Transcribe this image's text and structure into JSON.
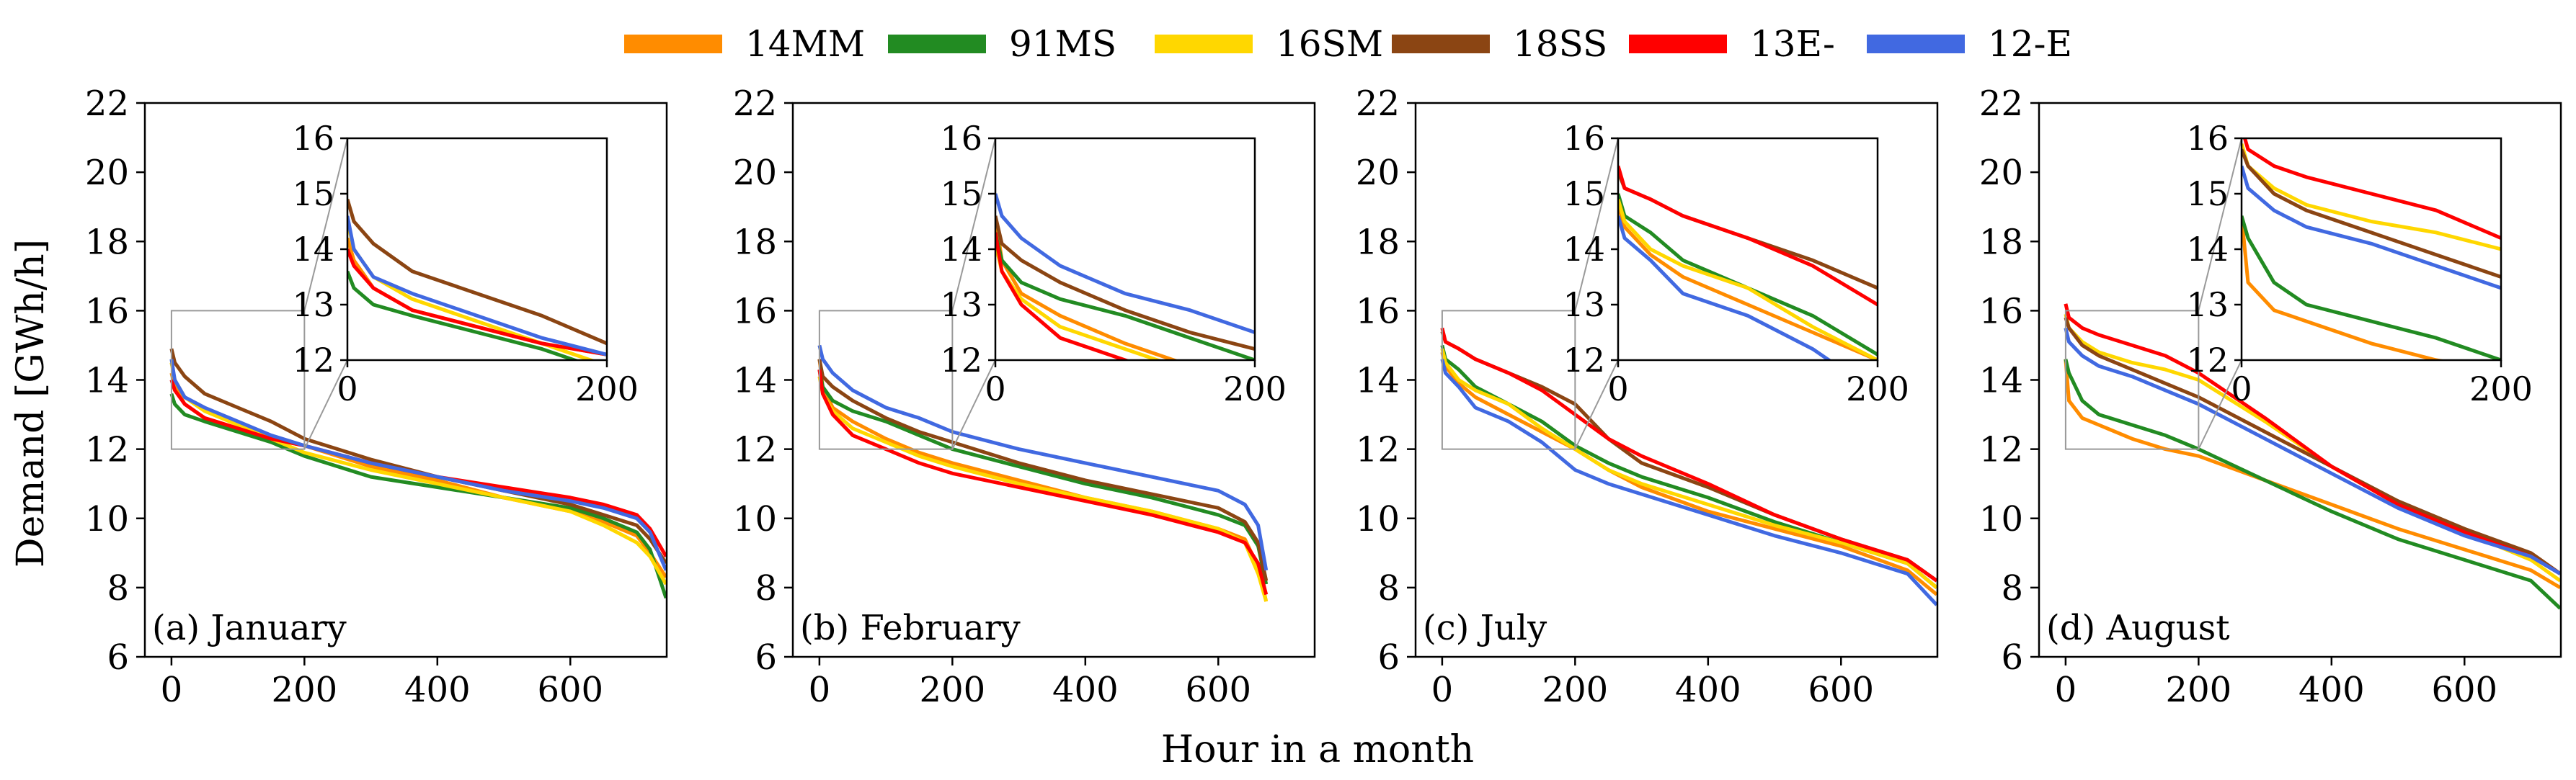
{
  "figure": {
    "ylabel": "Demand [GWh/h]",
    "xlabel": "Hour in a month"
  },
  "legend": {
    "placement": "top-center",
    "entries": [
      {
        "name": "14MM",
        "color": "#ff8c00"
      },
      {
        "name": "91MS",
        "color": "#228b22"
      },
      {
        "name": "16SM",
        "color": "#ffd700"
      },
      {
        "name": "18SS",
        "color": "#8b4513"
      },
      {
        "name": "13E-",
        "color": "#ff0000"
      },
      {
        "name": "12-E",
        "color": "#4169e1"
      }
    ]
  },
  "chart_data": [
    {
      "type": "line",
      "panel_label": "(a) January",
      "xlim": [
        -40,
        745
      ],
      "ylim": [
        6,
        22
      ],
      "xticks": [
        "0",
        "200",
        "400",
        "600"
      ],
      "yticks": [
        "6",
        "8",
        "10",
        "12",
        "14",
        "16",
        "18",
        "20",
        "22"
      ],
      "inset": {
        "xlim": [
          0,
          200
        ],
        "ylim": [
          12,
          16
        ],
        "xticks": [
          "0",
          "200"
        ],
        "yticks": [
          "12",
          "13",
          "14",
          "15",
          "16"
        ]
      },
      "series": [
        {
          "name": "14MM",
          "x": [
            0,
            5,
            20,
            50,
            100,
            150,
            200,
            300,
            400,
            500,
            600,
            650,
            700,
            720,
            744
          ],
          "y": [
            14.2,
            13.8,
            13.3,
            12.9,
            12.6,
            12.3,
            12.1,
            11.5,
            11.1,
            10.6,
            10.2,
            9.9,
            9.5,
            9.0,
            8.3
          ]
        },
        {
          "name": "91MS",
          "x": [
            0,
            5,
            20,
            50,
            100,
            150,
            200,
            300,
            400,
            500,
            600,
            650,
            700,
            720,
            744
          ],
          "y": [
            13.6,
            13.3,
            13.0,
            12.8,
            12.5,
            12.2,
            11.8,
            11.2,
            10.9,
            10.6,
            10.3,
            10.0,
            9.6,
            9.1,
            7.7
          ]
        },
        {
          "name": "16SM",
          "x": [
            0,
            5,
            20,
            50,
            100,
            150,
            200,
            300,
            400,
            500,
            600,
            650,
            700,
            720,
            744
          ],
          "y": [
            14.5,
            14.0,
            13.5,
            13.1,
            12.7,
            12.3,
            11.9,
            11.4,
            11.0,
            10.6,
            10.2,
            9.8,
            9.3,
            8.9,
            8.1
          ]
        },
        {
          "name": "18SS",
          "x": [
            0,
            5,
            20,
            50,
            100,
            150,
            200,
            300,
            400,
            500,
            600,
            650,
            700,
            720,
            744
          ],
          "y": [
            14.9,
            14.5,
            14.1,
            13.6,
            13.2,
            12.8,
            12.3,
            11.7,
            11.2,
            10.8,
            10.4,
            10.1,
            9.8,
            9.4,
            8.7
          ]
        },
        {
          "name": "13E-",
          "x": [
            0,
            5,
            20,
            50,
            100,
            150,
            200,
            300,
            400,
            500,
            600,
            650,
            700,
            720,
            744
          ],
          "y": [
            14.0,
            13.7,
            13.3,
            12.9,
            12.6,
            12.3,
            12.1,
            11.6,
            11.2,
            10.9,
            10.6,
            10.4,
            10.1,
            9.7,
            8.9
          ]
        },
        {
          "name": "12-E",
          "x": [
            0,
            5,
            20,
            50,
            100,
            150,
            200,
            300,
            400,
            500,
            600,
            650,
            700,
            720,
            744
          ],
          "y": [
            14.6,
            14.0,
            13.5,
            13.2,
            12.8,
            12.4,
            12.1,
            11.6,
            11.2,
            10.8,
            10.5,
            10.3,
            10.0,
            9.6,
            8.5
          ]
        }
      ]
    },
    {
      "type": "line",
      "panel_label": "(b) February",
      "xlim": [
        -40,
        745
      ],
      "ylim": [
        6,
        22
      ],
      "xticks": [
        "0",
        "200",
        "400",
        "600"
      ],
      "yticks": [
        "6",
        "8",
        "10",
        "12",
        "14",
        "16",
        "18",
        "20",
        "22"
      ],
      "inset": {
        "xlim": [
          0,
          200
        ],
        "ylim": [
          12,
          16
        ],
        "xticks": [
          "0",
          "200"
        ],
        "yticks": [
          "12",
          "13",
          "14",
          "15",
          "16"
        ]
      },
      "series": [
        {
          "name": "14MM",
          "x": [
            0,
            5,
            20,
            50,
            100,
            150,
            200,
            300,
            400,
            500,
            600,
            640,
            660,
            672
          ],
          "y": [
            14.6,
            13.8,
            13.2,
            12.8,
            12.3,
            11.9,
            11.6,
            11.1,
            10.6,
            10.2,
            9.7,
            9.4,
            8.6,
            7.6
          ]
        },
        {
          "name": "91MS",
          "x": [
            0,
            5,
            20,
            50,
            100,
            150,
            200,
            300,
            400,
            500,
            600,
            640,
            660,
            672
          ],
          "y": [
            14.3,
            13.8,
            13.4,
            13.1,
            12.8,
            12.4,
            12.0,
            11.5,
            11.0,
            10.6,
            10.1,
            9.8,
            9.2,
            8.1
          ]
        },
        {
          "name": "16SM",
          "x": [
            0,
            5,
            20,
            50,
            100,
            150,
            200,
            300,
            400,
            500,
            600,
            640,
            660,
            672
          ],
          "y": [
            14.1,
            13.6,
            13.1,
            12.6,
            12.2,
            11.8,
            11.5,
            11.0,
            10.6,
            10.2,
            9.7,
            9.3,
            8.4,
            7.6
          ]
        },
        {
          "name": "18SS",
          "x": [
            0,
            5,
            20,
            50,
            100,
            150,
            200,
            300,
            400,
            500,
            600,
            640,
            660,
            672
          ],
          "y": [
            14.6,
            14.1,
            13.8,
            13.4,
            12.9,
            12.5,
            12.2,
            11.6,
            11.1,
            10.7,
            10.3,
            9.9,
            9.3,
            8.2
          ]
        },
        {
          "name": "13E-",
          "x": [
            0,
            5,
            20,
            50,
            100,
            150,
            200,
            300,
            400,
            500,
            600,
            640,
            660,
            672
          ],
          "y": [
            14.3,
            13.6,
            13.0,
            12.4,
            12.0,
            11.6,
            11.3,
            10.9,
            10.5,
            10.1,
            9.6,
            9.3,
            8.7,
            7.8
          ]
        },
        {
          "name": "12-E",
          "x": [
            0,
            5,
            20,
            50,
            100,
            150,
            200,
            300,
            400,
            500,
            600,
            640,
            660,
            672
          ],
          "y": [
            15.0,
            14.6,
            14.2,
            13.7,
            13.2,
            12.9,
            12.5,
            12.0,
            11.6,
            11.2,
            10.8,
            10.4,
            9.8,
            8.5
          ]
        }
      ]
    },
    {
      "type": "line",
      "panel_label": "(c) July",
      "xlim": [
        -40,
        745
      ],
      "ylim": [
        6,
        22
      ],
      "xticks": [
        "0",
        "200",
        "400",
        "600"
      ],
      "yticks": [
        "6",
        "8",
        "10",
        "12",
        "14",
        "16",
        "18",
        "20",
        "22"
      ],
      "inset": {
        "xlim": [
          0,
          200
        ],
        "ylim": [
          12,
          16
        ],
        "xticks": [
          "0",
          "200"
        ],
        "yticks": [
          "12",
          "13",
          "14",
          "15",
          "16"
        ]
      },
      "series": [
        {
          "name": "14MM",
          "x": [
            0,
            5,
            25,
            50,
            100,
            150,
            200,
            250,
            300,
            400,
            500,
            600,
            700,
            744
          ],
          "y": [
            14.8,
            14.4,
            13.9,
            13.5,
            13.0,
            12.5,
            12.0,
            11.4,
            10.9,
            10.2,
            9.7,
            9.2,
            8.5,
            7.8
          ]
        },
        {
          "name": "91MS",
          "x": [
            0,
            5,
            25,
            50,
            100,
            150,
            200,
            250,
            300,
            400,
            500,
            600,
            700,
            744
          ],
          "y": [
            15.0,
            14.6,
            14.3,
            13.8,
            13.3,
            12.8,
            12.1,
            11.6,
            11.2,
            10.6,
            9.9,
            9.3,
            8.7,
            8.0
          ]
        },
        {
          "name": "16SM",
          "x": [
            0,
            5,
            25,
            50,
            100,
            150,
            200,
            250,
            300,
            400,
            500,
            600,
            700,
            744
          ],
          "y": [
            14.9,
            14.5,
            14.0,
            13.7,
            13.3,
            12.6,
            12.0,
            11.4,
            11.0,
            10.4,
            9.8,
            9.3,
            8.7,
            8.0
          ]
        },
        {
          "name": "18SS",
          "x": [
            0,
            5,
            25,
            50,
            100,
            150,
            200,
            250,
            300,
            400,
            500,
            600,
            700,
            744
          ],
          "y": [
            15.4,
            15.1,
            14.9,
            14.6,
            14.2,
            13.8,
            13.3,
            12.3,
            11.6,
            10.9,
            10.1,
            9.4,
            8.8,
            8.2
          ]
        },
        {
          "name": "13E-",
          "x": [
            0,
            5,
            25,
            50,
            100,
            150,
            200,
            250,
            300,
            400,
            500,
            600,
            700,
            744
          ],
          "y": [
            15.5,
            15.1,
            14.9,
            14.6,
            14.2,
            13.7,
            13.0,
            12.3,
            11.8,
            11.0,
            10.1,
            9.4,
            8.8,
            8.2
          ]
        },
        {
          "name": "12-E",
          "x": [
            0,
            5,
            25,
            50,
            100,
            150,
            200,
            250,
            300,
            400,
            500,
            600,
            700,
            744
          ],
          "y": [
            14.6,
            14.2,
            13.8,
            13.2,
            12.8,
            12.2,
            11.4,
            11.0,
            10.7,
            10.1,
            9.5,
            9.0,
            8.4,
            7.5
          ]
        }
      ]
    },
    {
      "type": "line",
      "panel_label": "(d) August",
      "xlim": [
        -40,
        745
      ],
      "ylim": [
        6,
        22
      ],
      "xticks": [
        "0",
        "200",
        "400",
        "600"
      ],
      "yticks": [
        "6",
        "8",
        "10",
        "12",
        "14",
        "16",
        "18",
        "20",
        "22"
      ],
      "inset": {
        "xlim": [
          0,
          200
        ],
        "ylim": [
          12,
          16
        ],
        "xticks": [
          "0",
          "200"
        ],
        "yticks": [
          "12",
          "13",
          "14",
          "15",
          "16"
        ]
      },
      "series": [
        {
          "name": "14MM",
          "x": [
            0,
            5,
            25,
            50,
            100,
            150,
            200,
            300,
            400,
            500,
            600,
            700,
            744
          ],
          "y": [
            14.6,
            13.4,
            12.9,
            12.7,
            12.3,
            12.0,
            11.8,
            11.1,
            10.4,
            9.7,
            9.1,
            8.5,
            8.0
          ]
        },
        {
          "name": "91MS",
          "x": [
            0,
            5,
            25,
            50,
            100,
            150,
            200,
            300,
            400,
            500,
            600,
            700,
            744
          ],
          "y": [
            14.6,
            14.2,
            13.4,
            13.0,
            12.7,
            12.4,
            12.0,
            11.1,
            10.2,
            9.4,
            8.8,
            8.2,
            7.4
          ]
        },
        {
          "name": "16SM",
          "x": [
            0,
            5,
            25,
            50,
            100,
            150,
            200,
            300,
            400,
            500,
            600,
            700,
            744
          ],
          "y": [
            15.9,
            15.5,
            15.1,
            14.8,
            14.5,
            14.3,
            14.0,
            12.8,
            11.5,
            10.4,
            9.6,
            8.8,
            8.2
          ]
        },
        {
          "name": "18SS",
          "x": [
            0,
            5,
            25,
            50,
            100,
            150,
            200,
            300,
            400,
            500,
            600,
            700,
            744
          ],
          "y": [
            15.8,
            15.5,
            15.0,
            14.7,
            14.3,
            13.9,
            13.5,
            12.5,
            11.5,
            10.5,
            9.7,
            9.0,
            8.4
          ]
        },
        {
          "name": "13E-",
          "x": [
            0,
            5,
            25,
            50,
            100,
            150,
            200,
            300,
            400,
            500,
            600,
            700,
            744
          ],
          "y": [
            16.2,
            15.8,
            15.5,
            15.3,
            15.0,
            14.7,
            14.2,
            12.9,
            11.5,
            10.4,
            9.6,
            8.9,
            8.4
          ]
        },
        {
          "name": "12-E",
          "x": [
            0,
            5,
            25,
            50,
            100,
            150,
            200,
            300,
            400,
            500,
            600,
            700,
            744
          ],
          "y": [
            15.5,
            15.1,
            14.7,
            14.4,
            14.1,
            13.7,
            13.3,
            12.3,
            11.3,
            10.3,
            9.5,
            8.9,
            8.4
          ]
        }
      ]
    }
  ]
}
